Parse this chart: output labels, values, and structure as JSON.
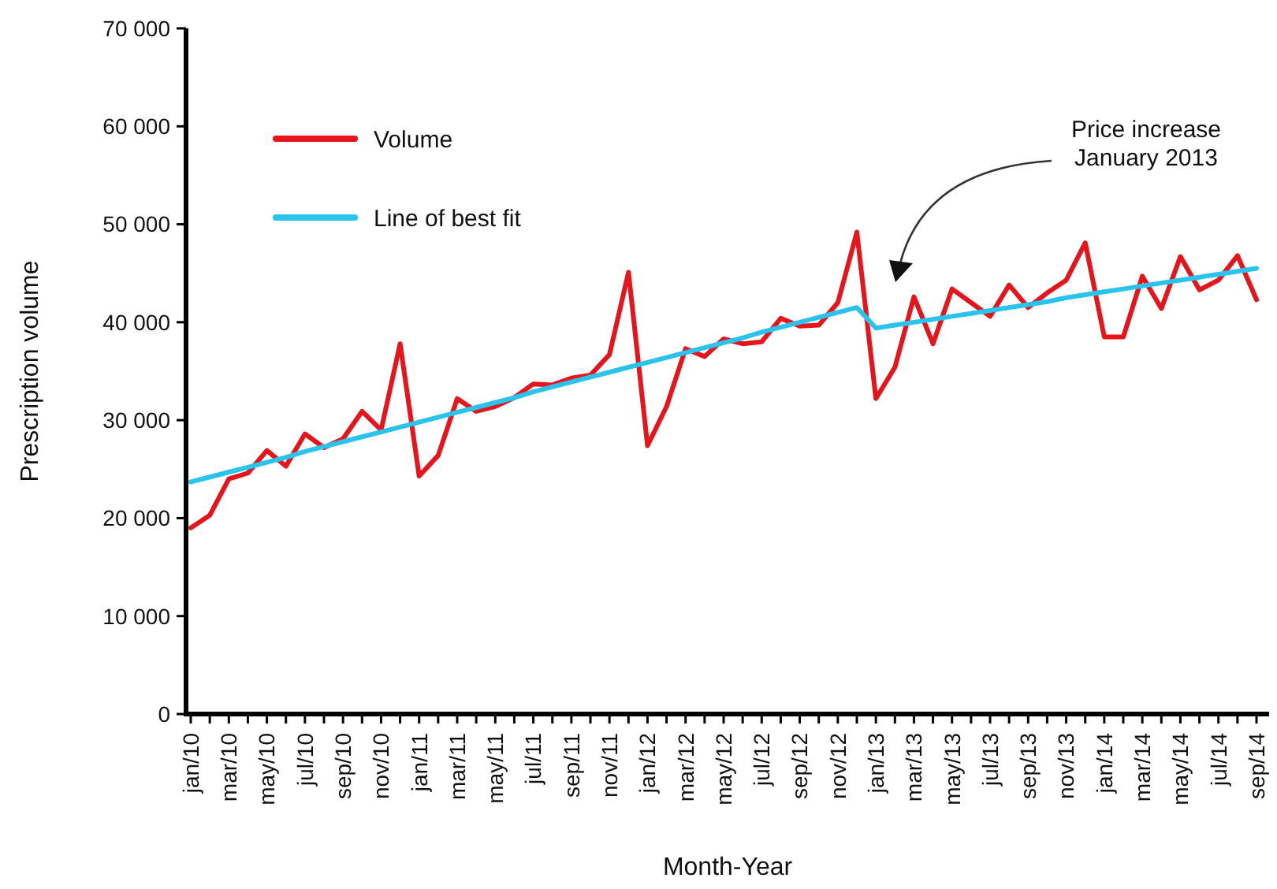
{
  "chart_data": {
    "type": "line",
    "xlabel": "Month-Year",
    "ylabel": "Prescription volume",
    "categories": [
      "jan/10",
      null,
      "mar/10",
      null,
      "may/10",
      null,
      "jul/10",
      null,
      "sep/10",
      null,
      "nov/10",
      null,
      "jan/11",
      null,
      "mar/11",
      null,
      "may/11",
      null,
      "jul/11",
      null,
      "sep/11",
      null,
      "nov/11",
      null,
      "jan/12",
      null,
      "mar/12",
      null,
      "may/12",
      null,
      "jul/12",
      null,
      "sep/12",
      null,
      "nov/12",
      null,
      "jan/13",
      null,
      "mar/13",
      null,
      "may/13",
      null,
      "jul/13",
      null,
      "sep/13",
      null,
      "nov/13",
      null,
      "jan/14",
      null,
      "mar/14",
      null,
      "may/14",
      null,
      "jul/14",
      null,
      "sep/14"
    ],
    "series": [
      {
        "name": "Volume",
        "color": "#e8141b",
        "values": [
          19000,
          20300,
          24000,
          24600,
          26900,
          25300,
          28600,
          27200,
          28100,
          30900,
          29000,
          37800,
          24300,
          26400,
          32200,
          30900,
          31400,
          32300,
          33700,
          33600,
          34300,
          34600,
          36700,
          45100,
          27400,
          31400,
          37300,
          36500,
          38300,
          37800,
          38000,
          40400,
          39600,
          39700,
          42000,
          49200,
          32200,
          35400,
          42600,
          37800,
          43400,
          42000,
          40600,
          43800,
          41500,
          43000,
          44300,
          48100,
          38500,
          38500,
          44700,
          41400,
          46700,
          43300,
          44300,
          46800,
          42300
        ]
      },
      {
        "name": "Line of best fit",
        "color": "#29c3ec",
        "values": [
          23700,
          24200,
          24700,
          25200,
          25700,
          26200,
          26800,
          27300,
          27800,
          28300,
          28800,
          29300,
          29800,
          30300,
          30800,
          31300,
          31800,
          32300,
          32900,
          33400,
          33900,
          34400,
          34900,
          35400,
          35900,
          36400,
          36900,
          37400,
          37900,
          38400,
          39000,
          39500,
          40000,
          40500,
          41000,
          41500,
          39400,
          39700,
          40000,
          40300,
          40600,
          40900,
          41200,
          41500,
          41800,
          42100,
          42500,
          42800,
          43100,
          43400,
          43700,
          44000,
          44300,
          44600,
          44900,
          45200,
          45500
        ]
      }
    ],
    "ylim": [
      0,
      70000
    ],
    "yticks": [
      0,
      {
        "value": 10000,
        "label": "10 000"
      },
      {
        "value": 20000,
        "label": "20 000"
      },
      {
        "value": 30000,
        "label": "30 000"
      },
      {
        "value": 40000,
        "label": "40 000"
      },
      {
        "value": 50000,
        "label": "50 000"
      },
      {
        "value": 60000,
        "label": "60 000"
      },
      {
        "value": 70000,
        "label": "70 000"
      }
    ],
    "grid": false,
    "legend": "top left",
    "marker": "none",
    "line_style": "solid",
    "annotations": [
      "Price increase\nJanuary 2013"
    ]
  }
}
